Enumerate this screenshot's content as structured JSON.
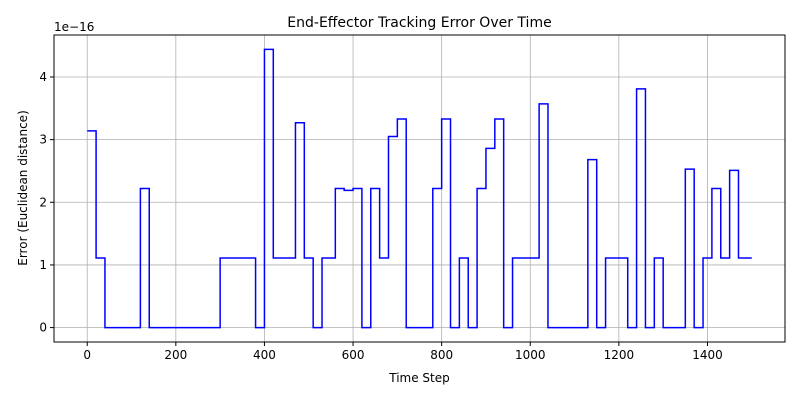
{
  "chart_data": {
    "type": "line",
    "title": "End-Effector Tracking Error Over Time",
    "xlabel": "Time Step",
    "ylabel": "Error (Euclidean distance)",
    "y_multiplier_label": "1e−16",
    "xlim": [
      -75,
      1575
    ],
    "ylim": [
      -0.23,
      4.67
    ],
    "x_ticks": [
      0,
      200,
      400,
      600,
      800,
      1000,
      1200,
      1400
    ],
    "y_ticks": [
      0,
      1,
      2,
      3,
      4
    ],
    "x_tick_labels": [
      "0",
      "200",
      "400",
      "600",
      "800",
      "1000",
      "1200",
      "1400"
    ],
    "y_tick_labels": [
      "0",
      "1",
      "2",
      "3",
      "4"
    ],
    "grid": true,
    "line_color": "#0000ff",
    "series": [
      {
        "step": "post",
        "x": [
          0,
          20,
          40,
          120,
          140,
          300,
          380,
          400,
          420,
          470,
          490,
          510,
          530,
          560,
          580,
          600,
          620,
          640,
          660,
          680,
          700,
          720,
          740,
          780,
          800,
          820,
          840,
          860,
          880,
          900,
          920,
          940,
          960,
          980,
          1020,
          1040,
          1130,
          1150,
          1170,
          1220,
          1240,
          1260,
          1280,
          1300,
          1350,
          1370,
          1390,
          1410,
          1430,
          1450,
          1470,
          1490,
          1500
        ],
        "y": [
          3.14,
          1.11,
          0,
          2.22,
          0,
          1.11,
          0,
          4.44,
          1.11,
          3.27,
          1.11,
          0,
          1.11,
          2.22,
          2.19,
          2.22,
          0,
          2.22,
          1.11,
          3.05,
          3.33,
          0,
          0,
          2.22,
          3.33,
          0,
          1.11,
          0,
          2.22,
          2.86,
          3.33,
          0,
          1.11,
          1.11,
          3.57,
          0,
          2.68,
          0,
          1.11,
          0,
          3.81,
          0,
          1.11,
          0,
          2.53,
          0,
          1.11,
          2.22,
          1.11,
          2.51,
          1.11,
          1.11,
          1.11
        ]
      }
    ]
  }
}
